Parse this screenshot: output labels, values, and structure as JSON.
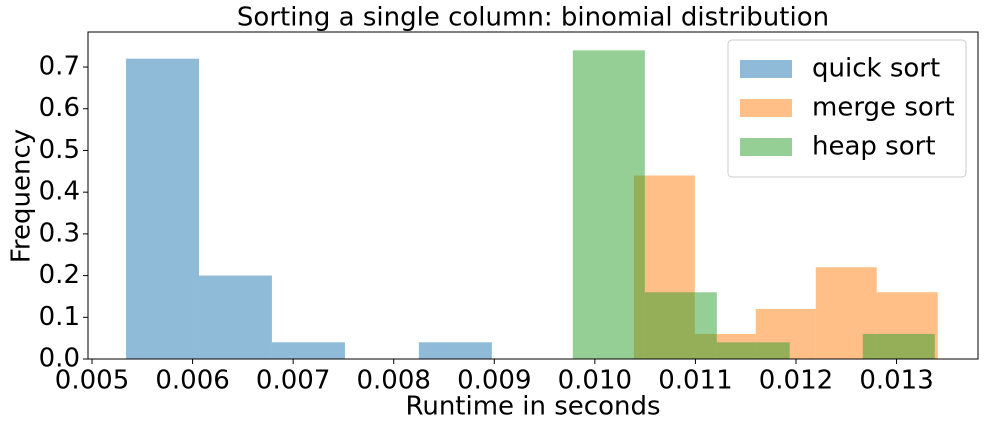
{
  "chart_data": {
    "type": "histogram",
    "title": "Sorting a single column: binomial distribution",
    "xlabel": "Runtime in seconds",
    "ylabel": "Frequency",
    "xlim": [
      0.00496,
      0.01381
    ],
    "ylim": [
      0,
      0.784
    ],
    "xticks": [
      0.005,
      0.006,
      0.007,
      0.008,
      0.009,
      {
        "value": 0.01,
        "label": "0.010"
      },
      0.011,
      0.012,
      0.013
    ],
    "yticks": [
      {
        "value": 0,
        "label": "0.0"
      },
      0.1,
      0.2,
      0.3,
      0.4,
      0.5,
      0.6,
      0.7
    ],
    "alpha": 0.5,
    "legend": "upper right",
    "series": [
      {
        "name": "quick sort",
        "color": "#1f77b4",
        "bins": [
          0.005338,
          0.006064,
          0.006789,
          0.007515,
          0.00825,
          0.008976
        ],
        "values": [
          0.72,
          0.2,
          0.04,
          0,
          0.04
        ]
      },
      {
        "name": "merge sort",
        "color": "#ff7f0e",
        "bins": [
          0.010388,
          0.010994,
          0.0116,
          0.012197,
          0.012803,
          0.01341
        ],
        "values": [
          0.44,
          0.06,
          0.12,
          0.22,
          0.16
        ]
      },
      {
        "name": "heap sort",
        "color": "#2ca02c",
        "bins": [
          0.009781,
          0.010497,
          0.011213,
          0.011938,
          0.012664,
          0.01338
        ],
        "values": [
          0.74,
          0.16,
          0.04,
          0,
          0.06
        ]
      }
    ]
  }
}
